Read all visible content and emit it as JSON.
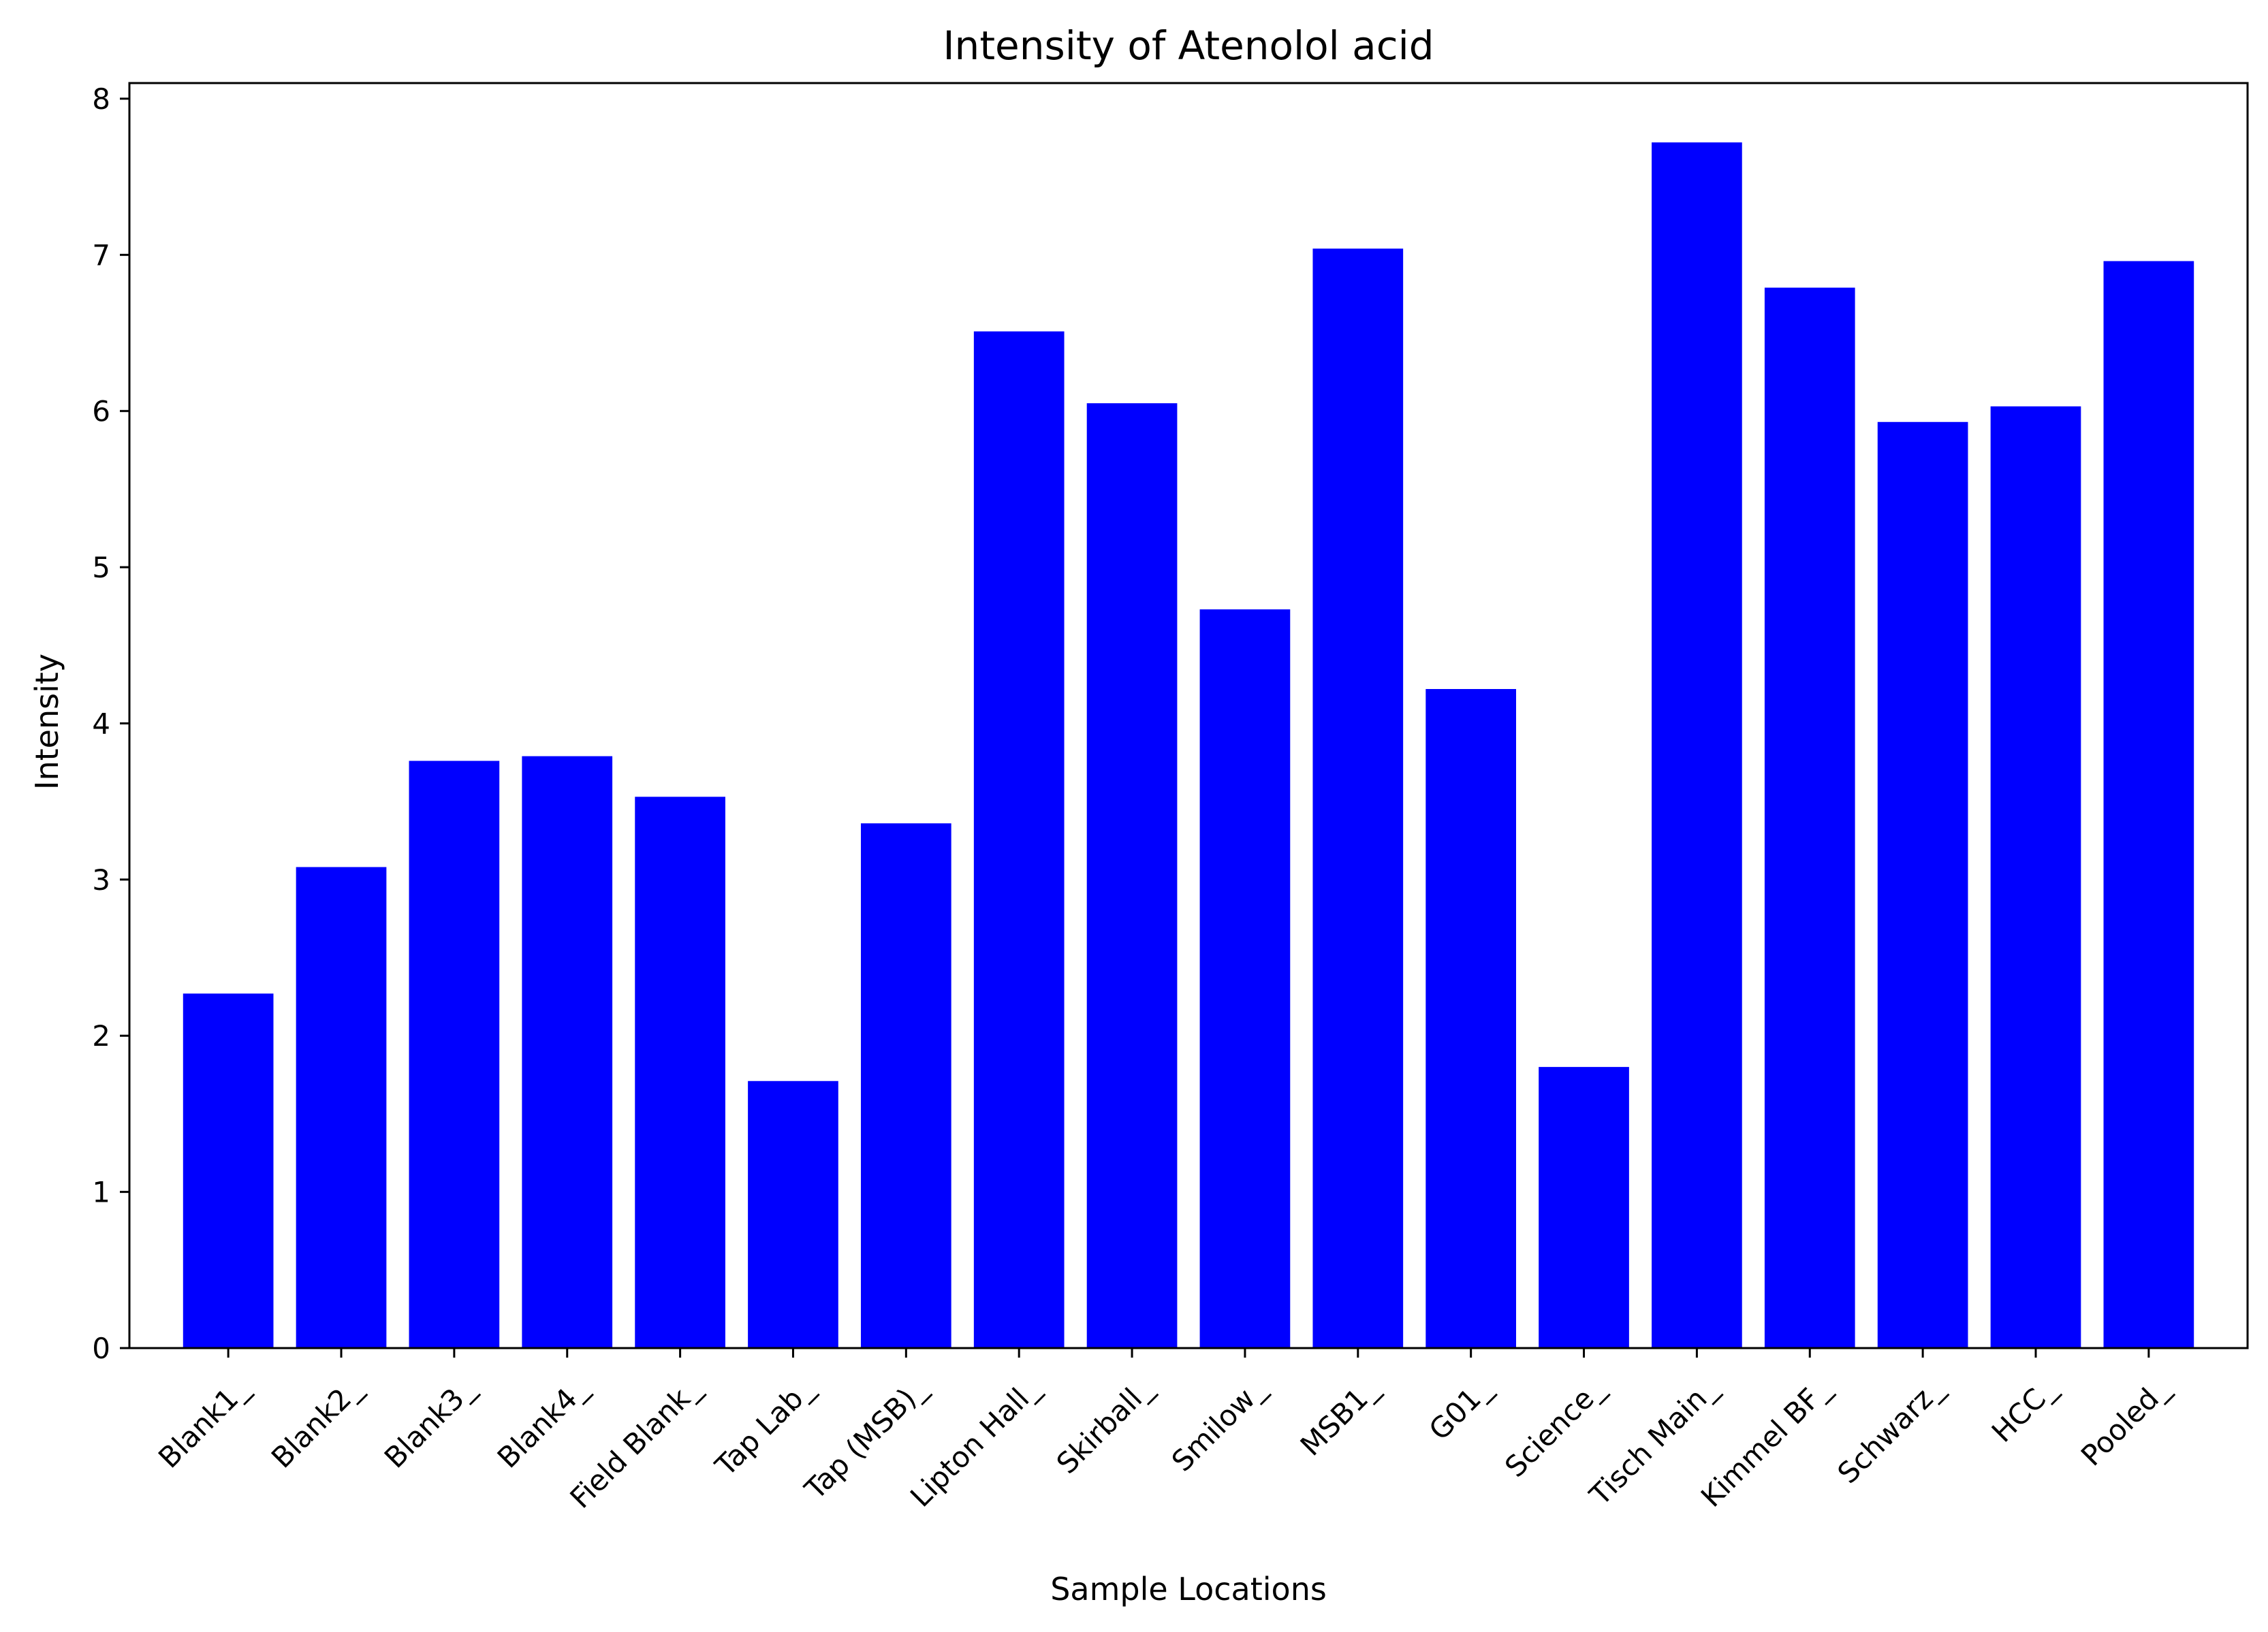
{
  "chart_data": {
    "type": "bar",
    "title": "Intensity of Atenolol acid",
    "xlabel": "Sample Locations",
    "ylabel": "Intensity",
    "categories": [
      "Blank1_",
      "Blank2_",
      "Blank3_",
      "Blank4_",
      "Field Blank_",
      "Tap Lab_",
      "Tap (MSB)_",
      "Lipton Hall_",
      "Skirball_",
      "Smilow_",
      "MSB1_",
      "G01_",
      "Science_",
      "Tisch Main_",
      "Kimmel BF_",
      "Schwarz_",
      "HCC_",
      "Pooled_"
    ],
    "values": [
      2.27,
      3.08,
      3.76,
      3.79,
      3.53,
      1.71,
      3.36,
      6.51,
      6.05,
      4.73,
      7.04,
      4.22,
      1.8,
      7.72,
      6.79,
      5.93,
      6.03,
      6.96
    ],
    "ylim": [
      0,
      8.1
    ],
    "yticks": [
      0,
      1,
      2,
      3,
      4,
      5,
      6,
      7,
      8
    ],
    "grid": false,
    "colors": {
      "bar": "#0000ff"
    }
  }
}
